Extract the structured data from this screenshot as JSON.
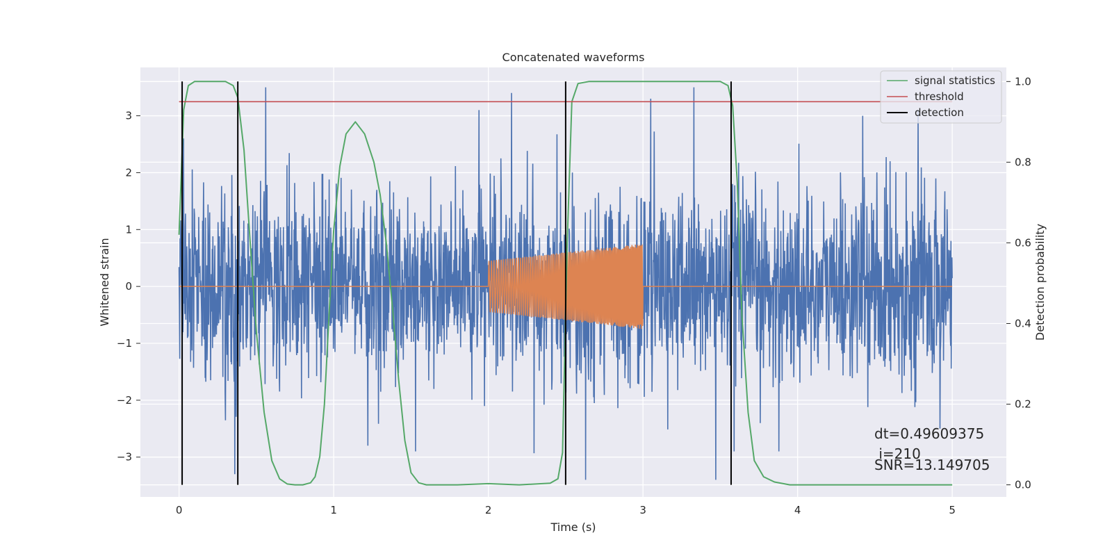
{
  "chart_data": {
    "type": "line",
    "title": "Concatenated waveforms",
    "xlabel": "Time (s)",
    "ylabel": "Whitened strain",
    "y2label": "Detection probability",
    "xlim": [
      -0.25,
      5.35
    ],
    "ylim": [
      -3.7,
      3.85
    ],
    "y2lim": [
      -0.03,
      1.035
    ],
    "xticks": [
      0,
      1,
      2,
      3,
      4,
      5
    ],
    "yticks": [
      -3,
      -2,
      -1,
      0,
      1,
      2,
      3
    ],
    "y2ticks": [
      0.0,
      0.2,
      0.4,
      0.6,
      0.8,
      1.0
    ],
    "xtick_labels": [
      "0",
      "1",
      "2",
      "3",
      "4",
      "5"
    ],
    "ytick_labels": [
      "−3",
      "−2",
      "−1",
      "0",
      "1",
      "2",
      "3"
    ],
    "y2tick_labels": [
      "0.0",
      "0.2",
      "0.4",
      "0.6",
      "0.8",
      "1.0"
    ],
    "background": "#eaeaf2",
    "grid": true,
    "legend_position": "top-right",
    "series": [
      {
        "name": "",
        "axis": "left",
        "color": "#4c72b0",
        "style": "noise",
        "x_range": [
          0,
          5
        ],
        "amplitude_rms": 0.8,
        "peaks": [
          {
            "x": 0.03,
            "y": 2.6
          },
          {
            "x": 0.36,
            "y": -3.3
          },
          {
            "x": 0.56,
            "y": 3.5
          },
          {
            "x": 1.22,
            "y": -2.8
          },
          {
            "x": 1.53,
            "y": -2.9
          },
          {
            "x": 1.94,
            "y": 3.1
          },
          {
            "x": 2.15,
            "y": 3.4
          },
          {
            "x": 2.63,
            "y": -3.4
          },
          {
            "x": 3.05,
            "y": 3.3
          },
          {
            "x": 3.33,
            "y": 3.5
          },
          {
            "x": 3.47,
            "y": -3.4
          },
          {
            "x": 3.59,
            "y": -2.9
          },
          {
            "x": 3.88,
            "y": -2.9
          },
          {
            "x": 4.42,
            "y": 3.0
          },
          {
            "x": 4.78,
            "y": 3.1
          },
          {
            "x": 4.92,
            "y": -2.5
          }
        ]
      },
      {
        "name": "",
        "axis": "left",
        "color": "#dd8452",
        "style": "chirp",
        "flat_ranges": [
          [
            0,
            2
          ],
          [
            3,
            5
          ]
        ],
        "chirp_range": [
          2,
          3
        ],
        "chirp_amplitude_start": 0.45,
        "chirp_amplitude_end": 0.75
      },
      {
        "name": "signal statistics",
        "axis": "right",
        "color": "#55a868",
        "x": [
          0.0,
          0.03,
          0.06,
          0.1,
          0.2,
          0.3,
          0.35,
          0.38,
          0.42,
          0.46,
          0.5,
          0.55,
          0.6,
          0.65,
          0.7,
          0.75,
          0.8,
          0.85,
          0.88,
          0.91,
          0.94,
          0.97,
          1.0,
          1.04,
          1.08,
          1.14,
          1.2,
          1.26,
          1.3,
          1.34,
          1.38,
          1.42,
          1.46,
          1.5,
          1.55,
          1.6,
          1.8,
          2.0,
          2.2,
          2.4,
          2.45,
          2.48,
          2.51,
          2.54,
          2.58,
          2.65,
          2.8,
          3.0,
          3.2,
          3.4,
          3.5,
          3.55,
          3.58,
          3.61,
          3.64,
          3.68,
          3.72,
          3.78,
          3.85,
          3.95,
          4.2,
          4.6,
          5.0
        ],
        "values": [
          0.62,
          0.93,
          0.99,
          1.0,
          1.0,
          1.0,
          0.99,
          0.96,
          0.83,
          0.6,
          0.38,
          0.18,
          0.06,
          0.015,
          0.002,
          0.0,
          0.0,
          0.005,
          0.02,
          0.07,
          0.2,
          0.42,
          0.63,
          0.79,
          0.87,
          0.9,
          0.87,
          0.8,
          0.72,
          0.6,
          0.44,
          0.26,
          0.11,
          0.03,
          0.005,
          0.0,
          0.0,
          0.003,
          0.0,
          0.004,
          0.015,
          0.08,
          0.6,
          0.95,
          0.995,
          1.0,
          1.0,
          1.0,
          1.0,
          1.0,
          1.0,
          0.99,
          0.94,
          0.75,
          0.42,
          0.18,
          0.06,
          0.02,
          0.007,
          0.0,
          0.0,
          0.0,
          0.0
        ]
      },
      {
        "name": "threshold",
        "axis": "right",
        "color": "#c44e52",
        "x": [
          0,
          5
        ],
        "values": [
          0.95,
          0.95
        ]
      },
      {
        "name": "detection",
        "axis": "right",
        "color": "#000000",
        "type": "vertical_lines",
        "x": [
          0.02,
          0.38,
          2.5,
          3.57
        ],
        "y_range": [
          0.0,
          1.0
        ]
      }
    ],
    "annotations": [
      "dt=0.49609375",
      " i=210",
      "SNR=13.149705"
    ]
  }
}
